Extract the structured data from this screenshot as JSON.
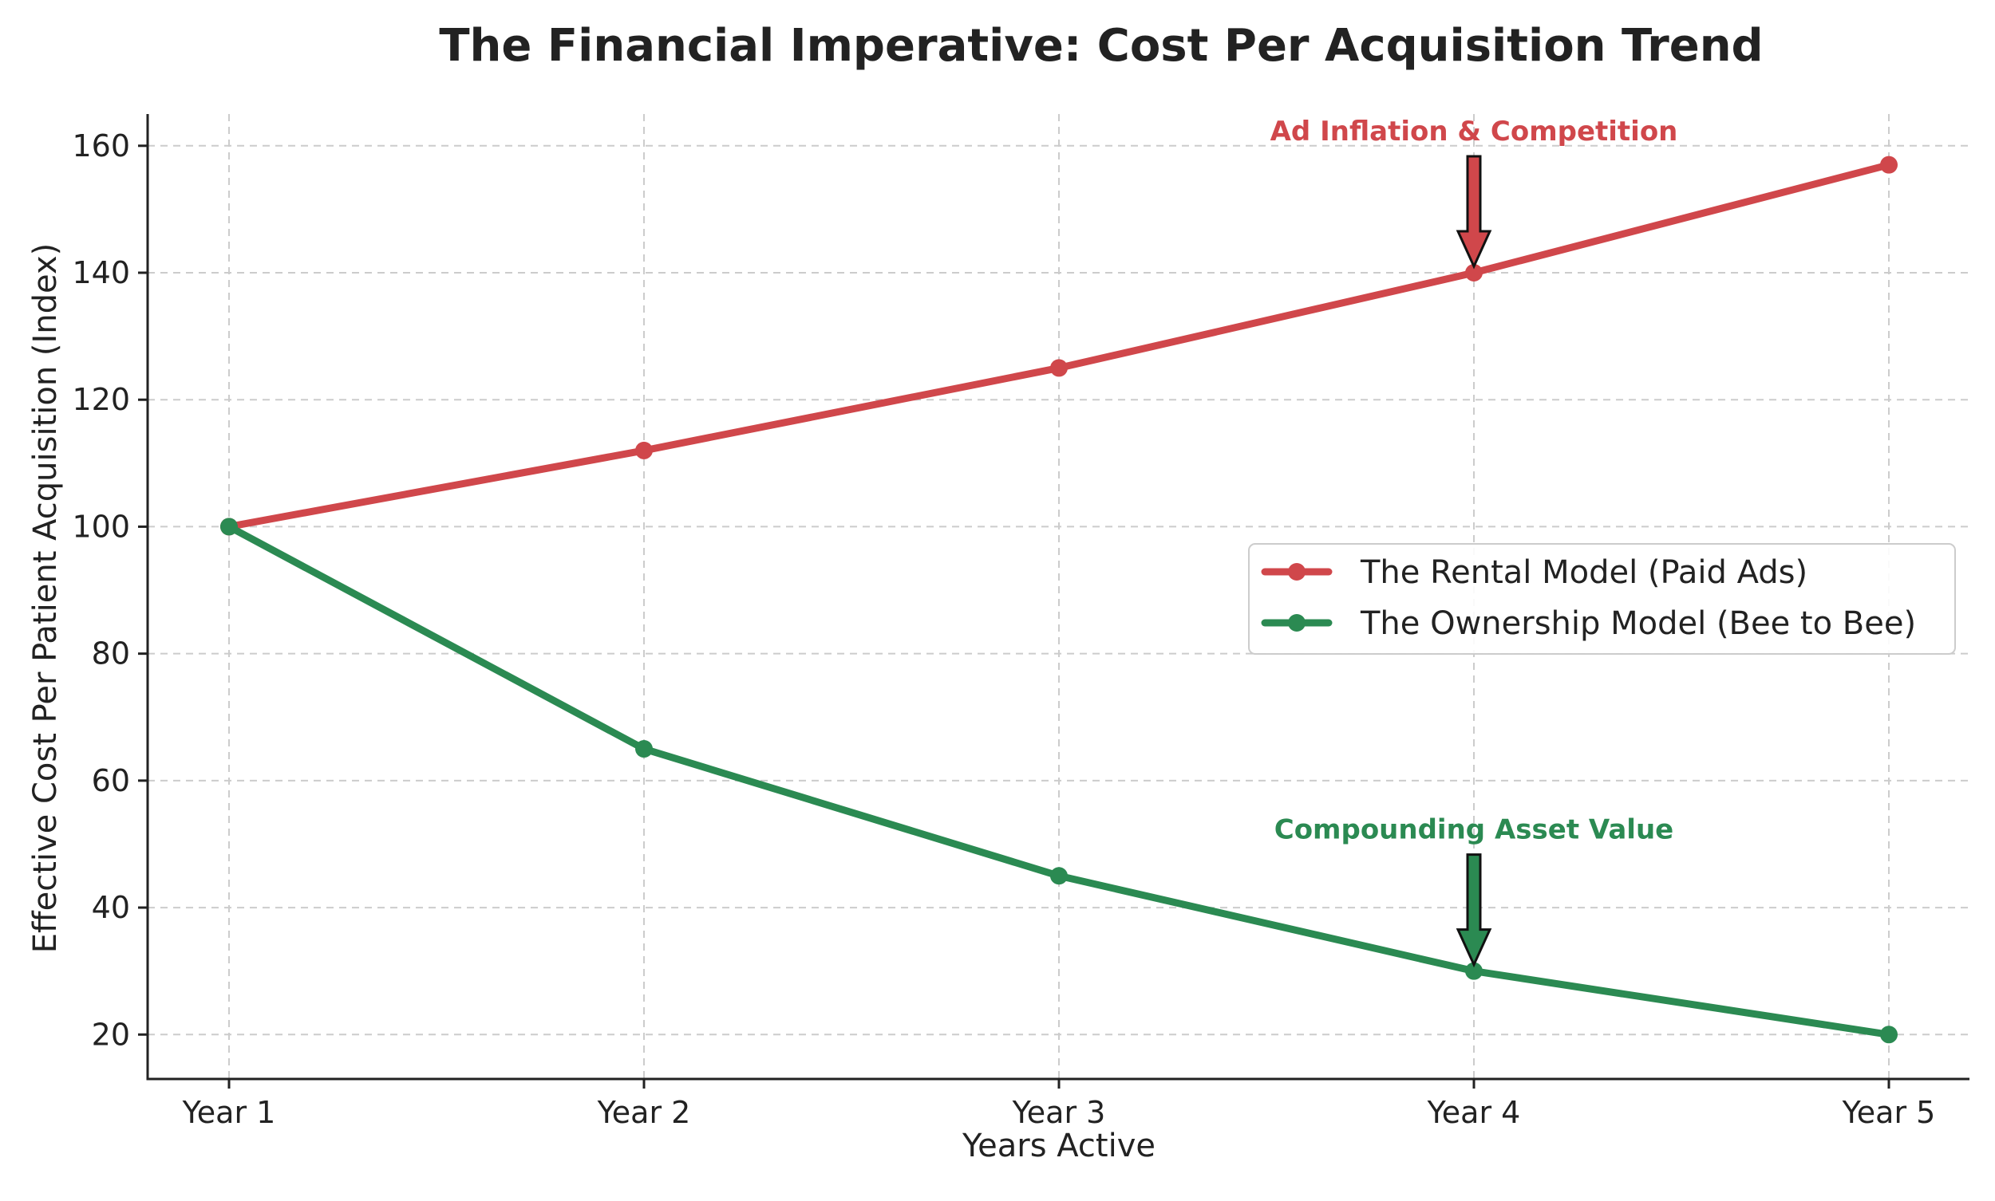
{
  "chart_data": {
    "type": "line",
    "title": "The Financial Imperative: Cost Per Acquisition Trend",
    "xlabel": "Years Active",
    "ylabel": "Effective Cost Per Patient Acquisition (Index)",
    "categories": [
      "Year 1",
      "Year 2",
      "Year 3",
      "Year 4",
      "Year 5"
    ],
    "yticks": [
      20,
      40,
      60,
      80,
      100,
      120,
      140,
      160
    ],
    "ylim": [
      13,
      165
    ],
    "grid": true,
    "legend_position": "center-right",
    "series": [
      {
        "name": "The Rental Model (Paid Ads)",
        "color": "#d0474b",
        "values": [
          100,
          112,
          125,
          140,
          157
        ]
      },
      {
        "name": "The Ownership Model (Bee to Bee)",
        "color": "#2b8a52",
        "values": [
          100,
          65,
          45,
          30,
          20
        ]
      }
    ],
    "annotations": [
      {
        "text": "Ad Inflation & Competition",
        "series_index": 0,
        "point_index": 3,
        "color": "#d0474b"
      },
      {
        "text": "Compounding Asset Value",
        "series_index": 1,
        "point_index": 3,
        "color": "#2b8a52"
      }
    ]
  }
}
